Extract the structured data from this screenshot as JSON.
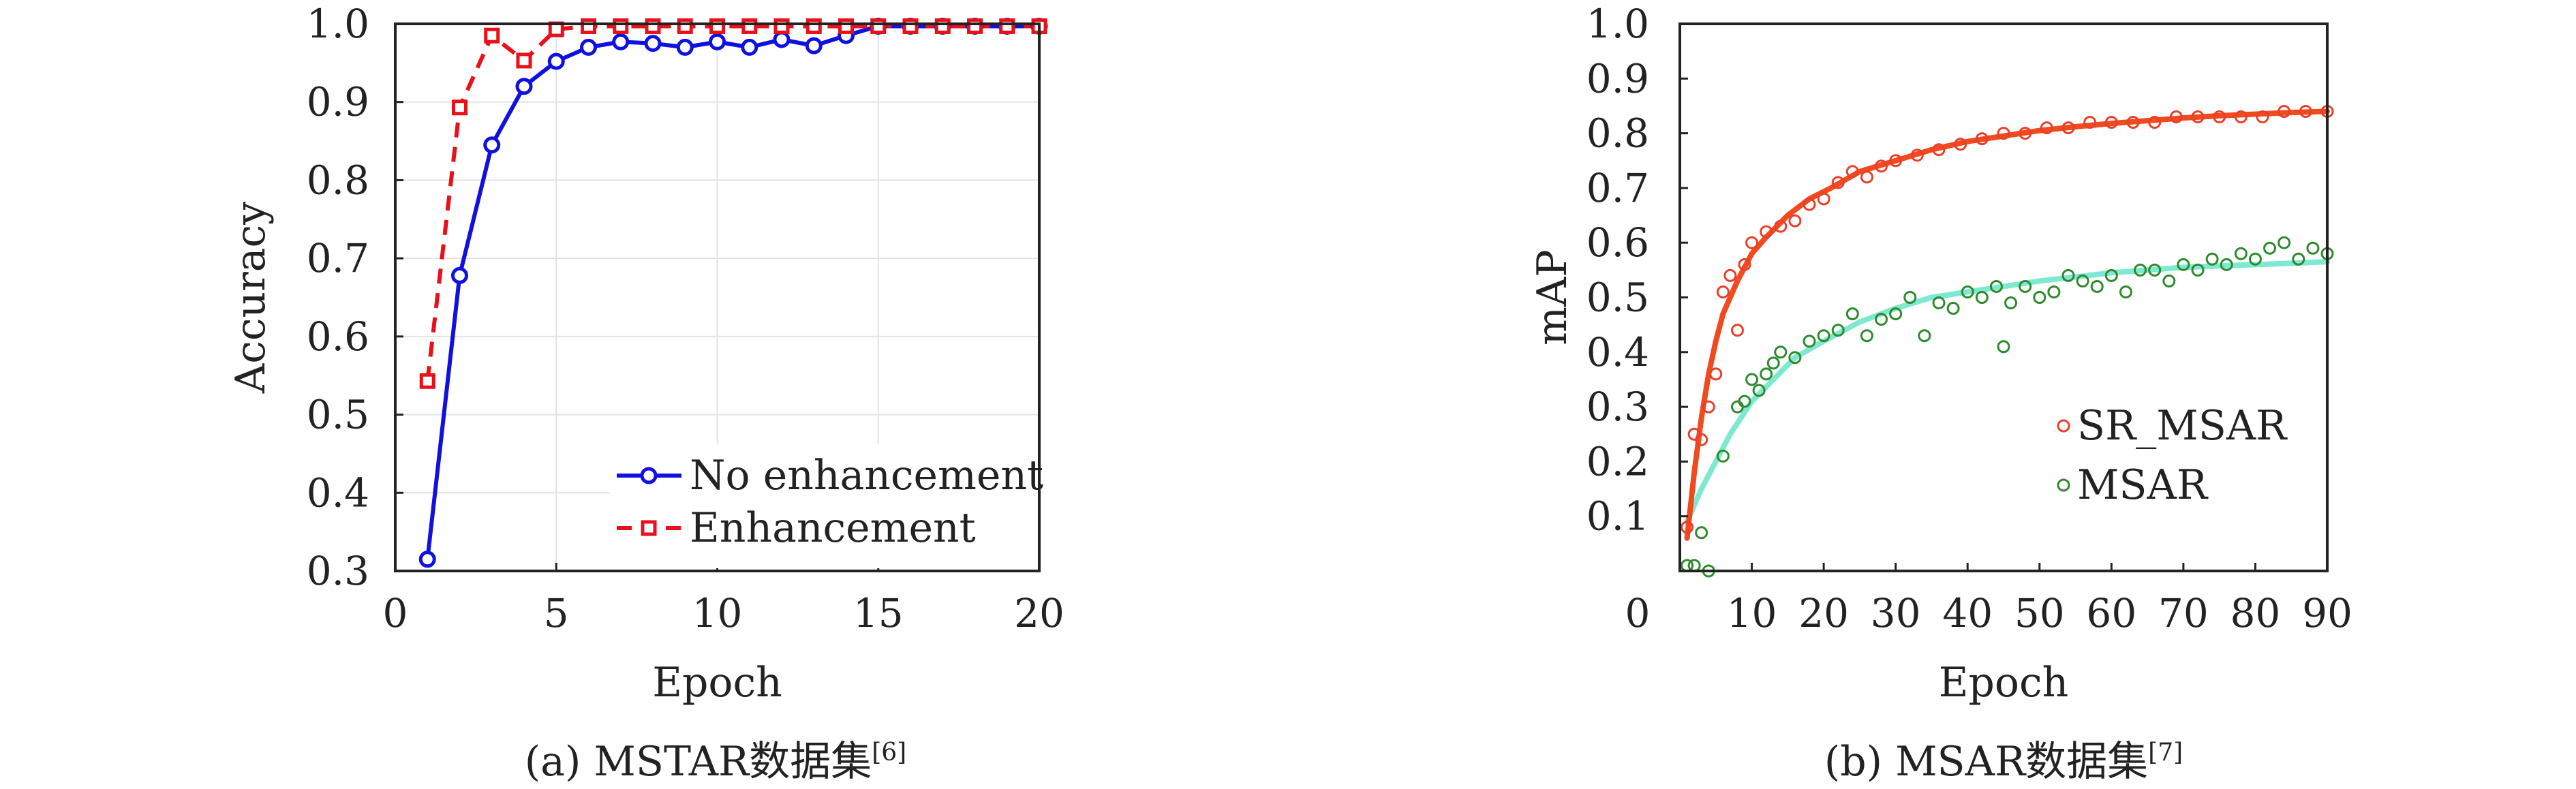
{
  "chart_data": [
    {
      "type": "line",
      "caption": "(a) MSTAR数据集",
      "caption_ref": "[6]",
      "xlabel": "Epoch",
      "ylabel": "Accuracy",
      "xlim": [
        0,
        20
      ],
      "ylim": [
        0.3,
        1.0
      ],
      "xticks": [
        "0",
        "5",
        "10",
        "15",
        "20"
      ],
      "yticks": [
        "0.3",
        "0.4",
        "0.5",
        "0.6",
        "0.7",
        "0.8",
        "0.9",
        "1.0"
      ],
      "grid": true,
      "legend_position": "bottom-right",
      "x": [
        1,
        2,
        3,
        4,
        5,
        6,
        7,
        8,
        9,
        10,
        11,
        12,
        13,
        14,
        15,
        16,
        17,
        18,
        19,
        20
      ],
      "series": [
        {
          "name": "No enhancement",
          "color": "#1010e0",
          "style": "solid",
          "marker": "circle",
          "values": [
            0.315,
            0.678,
            0.845,
            0.92,
            0.952,
            0.97,
            0.977,
            0.975,
            0.97,
            0.977,
            0.97,
            0.98,
            0.972,
            0.985,
            0.997,
            0.997,
            0.997,
            0.997,
            0.997,
            0.997
          ]
        },
        {
          "name": "Enhancement",
          "color": "#e8101a",
          "style": "dashed",
          "marker": "square",
          "values": [
            0.543,
            0.893,
            0.985,
            0.953,
            0.993,
            0.997,
            0.997,
            0.997,
            0.997,
            0.997,
            0.997,
            0.997,
            0.997,
            0.997,
            0.997,
            0.997,
            0.997,
            0.997,
            0.997,
            0.997
          ]
        }
      ]
    },
    {
      "type": "scatter",
      "caption": "(b) MSAR数据集",
      "caption_ref": "[7]",
      "xlabel": "Epoch",
      "ylabel": "mAP",
      "xlim": [
        0,
        90
      ],
      "ylim": [
        0,
        1.0
      ],
      "xticks": [
        "0",
        "10",
        "20",
        "30",
        "40",
        "50",
        "60",
        "70",
        "80",
        "90"
      ],
      "yticks": [
        "0.1",
        "0.2",
        "0.3",
        "0.4",
        "0.5",
        "0.6",
        "0.7",
        "0.8",
        "0.9",
        "1.0"
      ],
      "grid": false,
      "legend_position": "bottom-right",
      "series": [
        {
          "name": "SR_MSAR",
          "color": "#e8402a",
          "fit_color": "#f04a1e",
          "marker": "open-circle",
          "x": [
            1,
            2,
            3,
            4,
            5,
            6,
            7,
            8,
            9,
            10,
            12,
            14,
            16,
            18,
            20,
            22,
            24,
            26,
            28,
            30,
            33,
            36,
            39,
            42,
            45,
            48,
            51,
            54,
            57,
            60,
            63,
            66,
            69,
            72,
            75,
            78,
            81,
            84,
            87,
            90
          ],
          "y": [
            0.08,
            0.25,
            0.24,
            0.3,
            0.36,
            0.51,
            0.54,
            0.44,
            0.56,
            0.6,
            0.62,
            0.63,
            0.64,
            0.67,
            0.68,
            0.71,
            0.73,
            0.72,
            0.74,
            0.75,
            0.76,
            0.77,
            0.78,
            0.79,
            0.8,
            0.8,
            0.81,
            0.81,
            0.82,
            0.82,
            0.82,
            0.82,
            0.83,
            0.83,
            0.83,
            0.83,
            0.83,
            0.84,
            0.84,
            0.84
          ],
          "fit_x": [
            1,
            2,
            3,
            4,
            5,
            6,
            8,
            10,
            12,
            15,
            18,
            21,
            25,
            30,
            35,
            40,
            45,
            50,
            55,
            60,
            65,
            70,
            75,
            80,
            85,
            90
          ],
          "fit_y": [
            0.06,
            0.18,
            0.28,
            0.36,
            0.42,
            0.47,
            0.53,
            0.58,
            0.61,
            0.65,
            0.68,
            0.7,
            0.73,
            0.75,
            0.77,
            0.785,
            0.795,
            0.805,
            0.812,
            0.818,
            0.823,
            0.828,
            0.832,
            0.835,
            0.838,
            0.84
          ]
        },
        {
          "name": "MSAR",
          "color": "#2e8a2e",
          "fit_color": "#7fe8d0",
          "marker": "open-circle",
          "x": [
            1,
            2,
            3,
            4,
            6,
            8,
            9,
            10,
            11,
            12,
            13,
            14,
            16,
            18,
            20,
            22,
            24,
            26,
            28,
            30,
            32,
            34,
            36,
            38,
            40,
            42,
            44,
            45,
            46,
            48,
            50,
            52,
            54,
            56,
            58,
            60,
            62,
            64,
            66,
            68,
            70,
            72,
            74,
            76,
            78,
            80,
            82,
            84,
            86,
            88,
            90
          ],
          "y": [
            0.01,
            0.01,
            0.07,
            0.0,
            0.21,
            0.3,
            0.31,
            0.35,
            0.33,
            0.36,
            0.38,
            0.4,
            0.39,
            0.42,
            0.43,
            0.44,
            0.47,
            0.43,
            0.46,
            0.47,
            0.5,
            0.43,
            0.49,
            0.48,
            0.51,
            0.5,
            0.52,
            0.41,
            0.49,
            0.52,
            0.5,
            0.51,
            0.54,
            0.53,
            0.52,
            0.54,
            0.51,
            0.55,
            0.55,
            0.53,
            0.56,
            0.55,
            0.57,
            0.56,
            0.58,
            0.57,
            0.59,
            0.6,
            0.57,
            0.59,
            0.58
          ],
          "fit_x": [
            1,
            2,
            3,
            5,
            7,
            10,
            13,
            16,
            20,
            25,
            30,
            35,
            40,
            50,
            60,
            70,
            80,
            90
          ],
          "fit_y": [
            0.09,
            0.12,
            0.15,
            0.2,
            0.25,
            0.31,
            0.35,
            0.39,
            0.42,
            0.455,
            0.48,
            0.5,
            0.51,
            0.53,
            0.545,
            0.555,
            0.56,
            0.565
          ]
        }
      ]
    }
  ]
}
